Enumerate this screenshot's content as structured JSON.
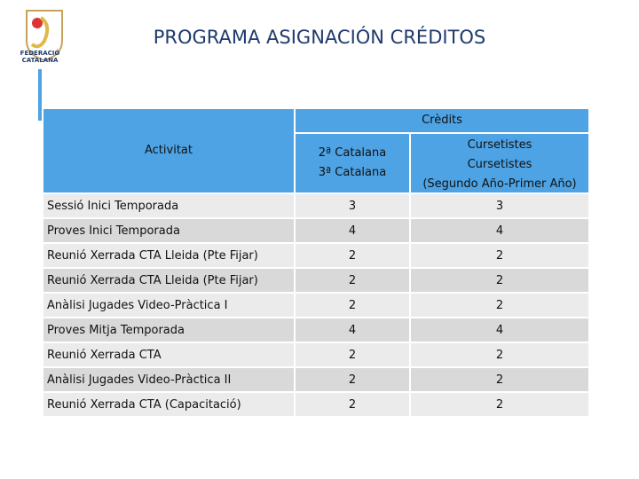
{
  "header": {
    "title": "PROGRAMA ASIGNACIÓN CRÉDITOS",
    "logo_text": "FEDERACIÓ CATALANA"
  },
  "table": {
    "head": {
      "activity": "Activitat",
      "group": "Crèdits",
      "col1": [
        "2ª Catalana",
        "3ª Catalana"
      ],
      "col2": [
        "Cursetistes",
        "Cursetistes",
        "(Segundo Año-Primer Año)"
      ]
    },
    "rows": [
      [
        "Sessió Inici Temporada",
        3,
        3
      ],
      [
        "Proves Inici Temporada",
        4,
        4
      ],
      [
        "Reunió Xerrada CTA Lleida (Pte Fijar)",
        2,
        2
      ],
      [
        "Reunió Xerrada CTA Lleida (Pte Fijar)",
        2,
        2
      ],
      [
        "Anàlisi Jugades Video-Pràctica I",
        2,
        2
      ],
      [
        "Proves Mitja Temporada",
        4,
        4
      ],
      [
        "Reunió Xerrada CTA",
        2,
        2
      ],
      [
        "Anàlisi Jugades Video-Pràctica II",
        2,
        2
      ],
      [
        "Reunió Xerrada CTA (Capacitació)",
        2,
        2
      ]
    ]
  }
}
